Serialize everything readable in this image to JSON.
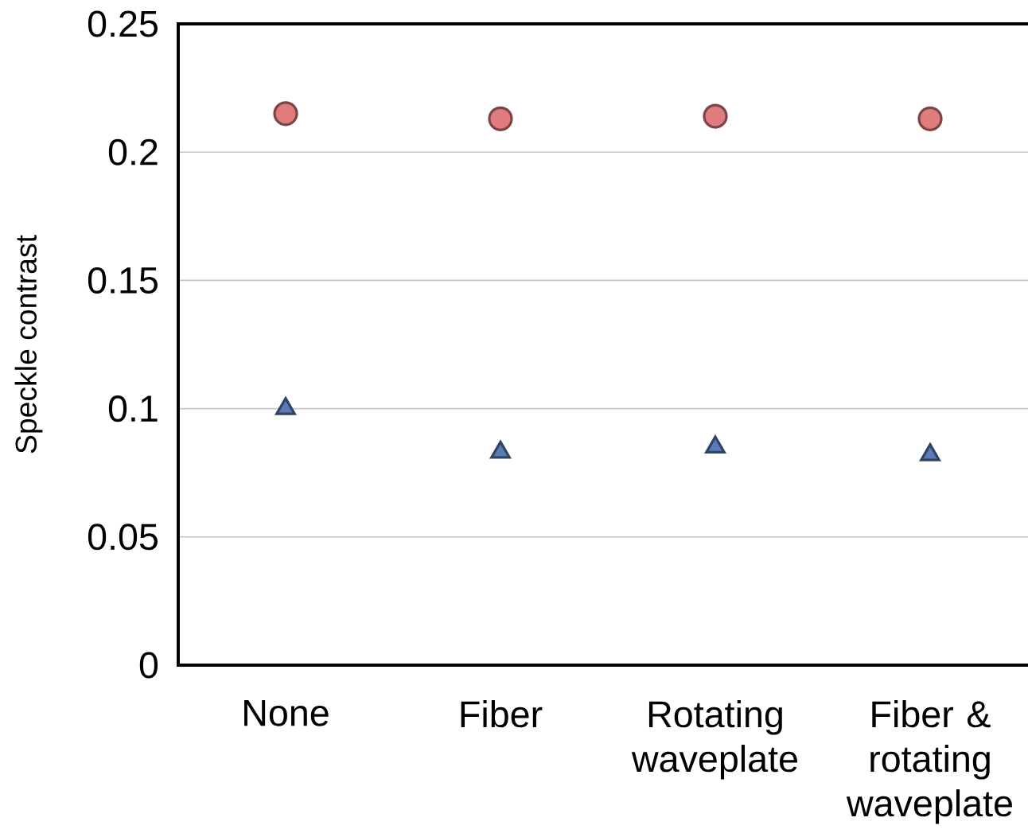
{
  "chart_data": {
    "type": "scatter",
    "ylabel": "Speckle contrast",
    "categories": [
      "None",
      "Fiber",
      "Rotating waveplate",
      "Fiber & rotating waveplate"
    ],
    "series": [
      {
        "color": "#e07b7e",
        "marker": "circle",
        "values": [
          0.215,
          0.213,
          0.214,
          0.213
        ]
      },
      {
        "color": "#5a7bb5",
        "marker": "triangle",
        "values": [
          0.1,
          0.083,
          0.085,
          0.082
        ]
      }
    ],
    "ylim": [
      0,
      0.25
    ],
    "yticks": [
      0,
      0.05,
      0.1,
      0.15,
      0.2,
      0.25
    ],
    "grid": "y"
  }
}
